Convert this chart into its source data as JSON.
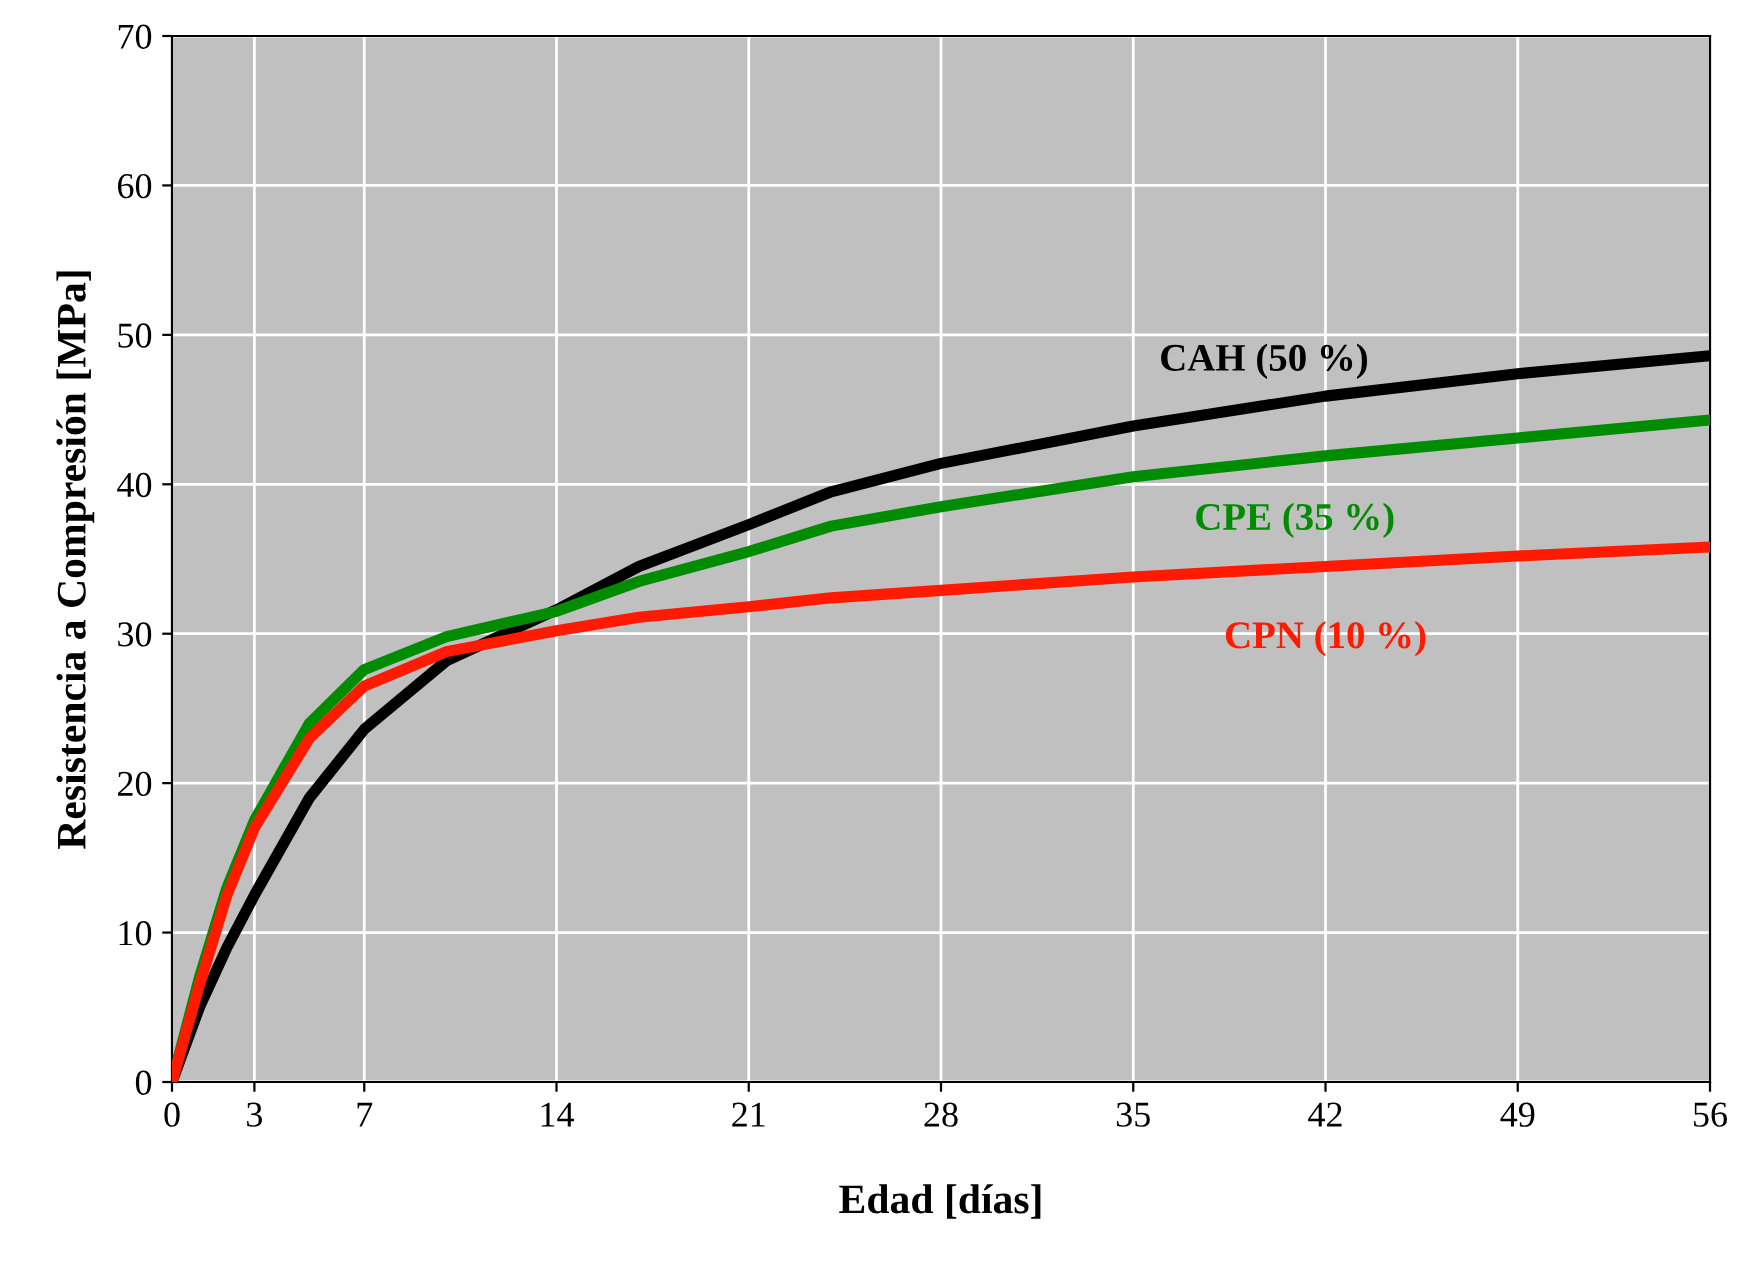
{
  "chart_data": {
    "type": "line",
    "xlabel": "Edad [días]",
    "ylabel": "Resistencia a Compresión [MPa]",
    "xlim": [
      0,
      56
    ],
    "xticks": [
      0,
      3,
      7,
      14,
      21,
      28,
      35,
      42,
      49,
      56
    ],
    "ylim": [
      0,
      70
    ],
    "yticks": [
      0,
      10,
      20,
      30,
      40,
      50,
      60,
      70
    ],
    "grid": true,
    "marker": "none",
    "line_style": "solid",
    "series": [
      {
        "name": "CAH (50 %)",
        "color": "#000000",
        "x": [
          0,
          1,
          2,
          3,
          5,
          7,
          10,
          14,
          17,
          21,
          24,
          28,
          35,
          42,
          49,
          56
        ],
        "values": [
          0,
          5,
          9,
          12.5,
          19,
          23.6,
          28.2,
          31.6,
          34.5,
          37.3,
          39.5,
          41.4,
          43.9,
          45.9,
          47.4,
          48.6
        ]
      },
      {
        "name": "CPE (35 %)",
        "color": "#008c00",
        "x": [
          0,
          1,
          2,
          3,
          5,
          7,
          10,
          14,
          17,
          21,
          24,
          28,
          35,
          42,
          49,
          56
        ],
        "values": [
          0,
          7,
          13,
          17.5,
          24,
          27.6,
          29.8,
          31.5,
          33.5,
          35.5,
          37.2,
          38.5,
          40.5,
          41.9,
          43.1,
          44.3
        ]
      },
      {
        "name": "CPN (10 %)",
        "color": "#ff1a00",
        "x": [
          0,
          1,
          2,
          3,
          5,
          7,
          10,
          14,
          17,
          21,
          24,
          28,
          35,
          42,
          49,
          56
        ],
        "values": [
          0,
          6.5,
          12.5,
          17,
          23,
          26.5,
          28.8,
          30.2,
          31.1,
          31.8,
          32.4,
          32.9,
          33.8,
          34.5,
          35.2,
          35.8
        ]
      }
    ]
  }
}
